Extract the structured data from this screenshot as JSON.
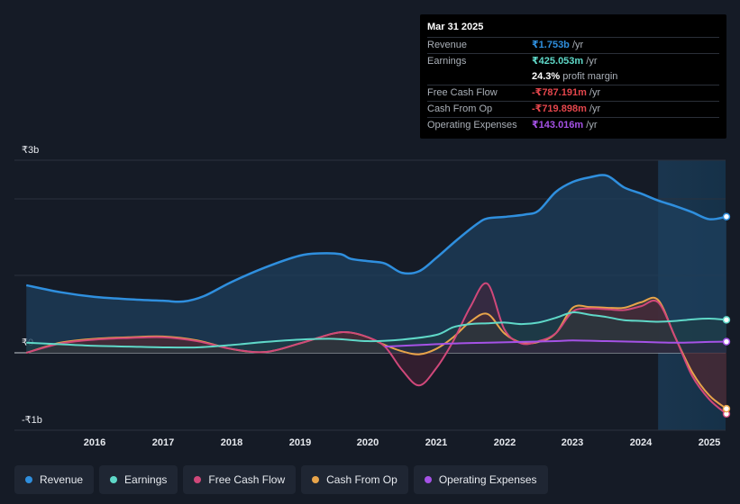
{
  "chart_data": {
    "type": "area",
    "y_tick_labels": [
      "₹3b",
      "₹0",
      "-₹1b"
    ],
    "x_tick_labels": [
      "2016",
      "2017",
      "2018",
      "2019",
      "2020",
      "2021",
      "2022",
      "2023",
      "2024",
      "2025"
    ],
    "ylim": [
      -1.0,
      2.5
    ],
    "xlim": [
      2015.0,
      2025.25
    ],
    "forecast_start": 2024.25,
    "series": [
      {
        "name": "Revenue",
        "color": "#2f8fde",
        "fill": "#1d3f5c",
        "points": [
          [
            2015.0,
            0.87
          ],
          [
            2015.5,
            0.78
          ],
          [
            2016.0,
            0.72
          ],
          [
            2016.5,
            0.69
          ],
          [
            2017.0,
            0.67
          ],
          [
            2017.3,
            0.66
          ],
          [
            2017.6,
            0.73
          ],
          [
            2018.0,
            0.91
          ],
          [
            2018.5,
            1.1
          ],
          [
            2019.0,
            1.25
          ],
          [
            2019.3,
            1.28
          ],
          [
            2019.6,
            1.27
          ],
          [
            2019.75,
            1.21
          ],
          [
            2020.0,
            1.18
          ],
          [
            2020.25,
            1.15
          ],
          [
            2020.5,
            1.03
          ],
          [
            2020.75,
            1.05
          ],
          [
            2021.0,
            1.22
          ],
          [
            2021.3,
            1.45
          ],
          [
            2021.6,
            1.66
          ],
          [
            2021.75,
            1.73
          ],
          [
            2022.0,
            1.75
          ],
          [
            2022.3,
            1.78
          ],
          [
            2022.5,
            1.83
          ],
          [
            2022.75,
            2.07
          ],
          [
            2023.0,
            2.2
          ],
          [
            2023.25,
            2.26
          ],
          [
            2023.5,
            2.28
          ],
          [
            2023.75,
            2.13
          ],
          [
            2024.0,
            2.05
          ],
          [
            2024.25,
            1.96
          ],
          [
            2024.5,
            1.89
          ],
          [
            2024.75,
            1.81
          ],
          [
            2025.0,
            1.72
          ],
          [
            2025.25,
            1.753
          ]
        ]
      },
      {
        "name": "Earnings",
        "color": "#5fd8c8",
        "fill": "#1f3d40",
        "points": [
          [
            2015.0,
            0.13
          ],
          [
            2015.5,
            0.11
          ],
          [
            2016.0,
            0.09
          ],
          [
            2016.5,
            0.08
          ],
          [
            2017.0,
            0.07
          ],
          [
            2017.5,
            0.07
          ],
          [
            2018.0,
            0.1
          ],
          [
            2018.5,
            0.14
          ],
          [
            2019.0,
            0.17
          ],
          [
            2019.5,
            0.18
          ],
          [
            2020.0,
            0.15
          ],
          [
            2020.5,
            0.17
          ],
          [
            2021.0,
            0.23
          ],
          [
            2021.25,
            0.33
          ],
          [
            2021.5,
            0.37
          ],
          [
            2021.75,
            0.38
          ],
          [
            2022.0,
            0.39
          ],
          [
            2022.25,
            0.37
          ],
          [
            2022.5,
            0.39
          ],
          [
            2022.75,
            0.45
          ],
          [
            2023.0,
            0.52
          ],
          [
            2023.25,
            0.49
          ],
          [
            2023.5,
            0.46
          ],
          [
            2023.75,
            0.42
          ],
          [
            2024.0,
            0.41
          ],
          [
            2024.25,
            0.4
          ],
          [
            2024.5,
            0.41
          ],
          [
            2024.75,
            0.43
          ],
          [
            2025.0,
            0.44
          ],
          [
            2025.25,
            0.425
          ]
        ]
      },
      {
        "name": "Free Cash Flow",
        "color": "#d0487a",
        "fill": "#4a2036",
        "points": [
          [
            2015.0,
            0.0
          ],
          [
            2015.5,
            0.12
          ],
          [
            2016.0,
            0.17
          ],
          [
            2016.5,
            0.19
          ],
          [
            2017.0,
            0.2
          ],
          [
            2017.5,
            0.15
          ],
          [
            2018.0,
            0.05
          ],
          [
            2018.5,
            0.01
          ],
          [
            2019.0,
            0.12
          ],
          [
            2019.5,
            0.25
          ],
          [
            2019.75,
            0.26
          ],
          [
            2020.0,
            0.2
          ],
          [
            2020.25,
            0.08
          ],
          [
            2020.5,
            -0.22
          ],
          [
            2020.75,
            -0.42
          ],
          [
            2021.0,
            -0.2
          ],
          [
            2021.25,
            0.15
          ],
          [
            2021.5,
            0.59
          ],
          [
            2021.75,
            0.89
          ],
          [
            2022.0,
            0.3
          ],
          [
            2022.25,
            0.12
          ],
          [
            2022.5,
            0.15
          ],
          [
            2022.75,
            0.25
          ],
          [
            2023.0,
            0.53
          ],
          [
            2023.25,
            0.57
          ],
          [
            2023.5,
            0.56
          ],
          [
            2023.75,
            0.55
          ],
          [
            2024.0,
            0.6
          ],
          [
            2024.25,
            0.65
          ],
          [
            2024.5,
            0.2
          ],
          [
            2024.75,
            -0.3
          ],
          [
            2025.0,
            -0.6
          ],
          [
            2025.25,
            -0.787
          ]
        ]
      },
      {
        "name": "Cash From Op",
        "color": "#e8a44a",
        "fill": "#4a3a2a",
        "points": [
          [
            2015.0,
            0.0
          ],
          [
            2015.5,
            0.13
          ],
          [
            2016.0,
            0.18
          ],
          [
            2016.5,
            0.2
          ],
          [
            2017.0,
            0.21
          ],
          [
            2017.5,
            0.16
          ],
          [
            2018.0,
            0.05
          ],
          [
            2018.5,
            0.01
          ],
          [
            2019.0,
            0.12
          ],
          [
            2019.5,
            0.25
          ],
          [
            2019.75,
            0.26
          ],
          [
            2020.0,
            0.2
          ],
          [
            2020.25,
            0.1
          ],
          [
            2020.5,
            0.02
          ],
          [
            2020.75,
            -0.02
          ],
          [
            2021.0,
            0.05
          ],
          [
            2021.25,
            0.2
          ],
          [
            2021.5,
            0.4
          ],
          [
            2021.75,
            0.5
          ],
          [
            2022.0,
            0.25
          ],
          [
            2022.25,
            0.13
          ],
          [
            2022.5,
            0.14
          ],
          [
            2022.75,
            0.25
          ],
          [
            2023.0,
            0.58
          ],
          [
            2023.25,
            0.59
          ],
          [
            2023.5,
            0.58
          ],
          [
            2023.75,
            0.58
          ],
          [
            2024.0,
            0.65
          ],
          [
            2024.25,
            0.68
          ],
          [
            2024.5,
            0.2
          ],
          [
            2024.75,
            -0.25
          ],
          [
            2025.0,
            -0.55
          ],
          [
            2025.25,
            -0.72
          ]
        ]
      },
      {
        "name": "Operating Expenses",
        "color": "#a552e6",
        "fill": "#2d2440",
        "points": [
          [
            2020.25,
            0.08
          ],
          [
            2020.75,
            0.1
          ],
          [
            2021.25,
            0.12
          ],
          [
            2021.75,
            0.13
          ],
          [
            2022.25,
            0.14
          ],
          [
            2022.75,
            0.15
          ],
          [
            2023.0,
            0.16
          ],
          [
            2023.5,
            0.15
          ],
          [
            2024.0,
            0.14
          ],
          [
            2024.5,
            0.13
          ],
          [
            2025.0,
            0.14
          ],
          [
            2025.25,
            0.143
          ]
        ]
      }
    ]
  },
  "tooltip": {
    "date": "Mar 31 2025",
    "rows": [
      {
        "label": "Revenue",
        "value": "₹1.753b",
        "unit": " /yr",
        "color": "#2f8fde"
      },
      {
        "label": "Earnings",
        "value": "₹425.053m",
        "unit": " /yr",
        "color": "#5fd8c8"
      },
      {
        "label": "",
        "value": "24.3%",
        "unit": " profit margin",
        "color": "#ffffff"
      },
      {
        "label": "Free Cash Flow",
        "value": "-₹787.191m",
        "unit": " /yr",
        "color": "#e4464c"
      },
      {
        "label": "Cash From Op",
        "value": "-₹719.898m",
        "unit": " /yr",
        "color": "#e4464c"
      },
      {
        "label": "Operating Expenses",
        "value": "₹143.016m",
        "unit": " /yr",
        "color": "#a552e6"
      }
    ]
  },
  "legend": [
    {
      "label": "Revenue",
      "color": "#2f8fde"
    },
    {
      "label": "Earnings",
      "color": "#5fd8c8"
    },
    {
      "label": "Free Cash Flow",
      "color": "#d0487a"
    },
    {
      "label": "Cash From Op",
      "color": "#e8a44a"
    },
    {
      "label": "Operating Expenses",
      "color": "#a552e6"
    }
  ]
}
